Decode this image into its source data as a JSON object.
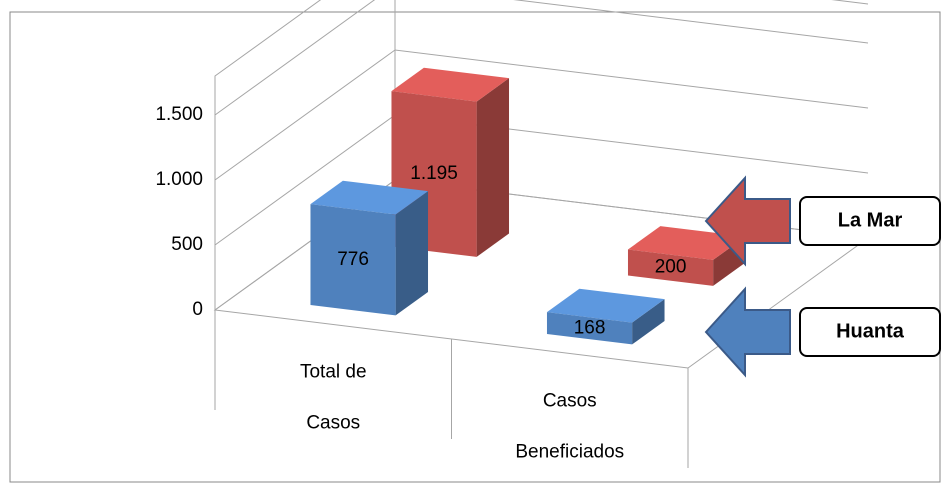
{
  "chart_data": {
    "type": "bar3d",
    "categories": [
      [
        "Total de",
        "Casos"
      ],
      [
        "Casos",
        "Beneficiados"
      ]
    ],
    "series": [
      {
        "name": "Huanta",
        "color": "#4f81bd",
        "values": [
          776,
          168
        ]
      },
      {
        "name": "La Mar",
        "color": "#c0504d",
        "values": [
          1195,
          200
        ],
        "value_labels": [
          "1.195",
          "200"
        ]
      }
    ],
    "ylim": [
      0,
      1800
    ],
    "yticks": [
      0,
      500,
      {
        "value": 1000,
        "label": "1.000"
      },
      {
        "value": 1500,
        "label": "1.500"
      }
    ],
    "grid": true,
    "legend": "right"
  }
}
